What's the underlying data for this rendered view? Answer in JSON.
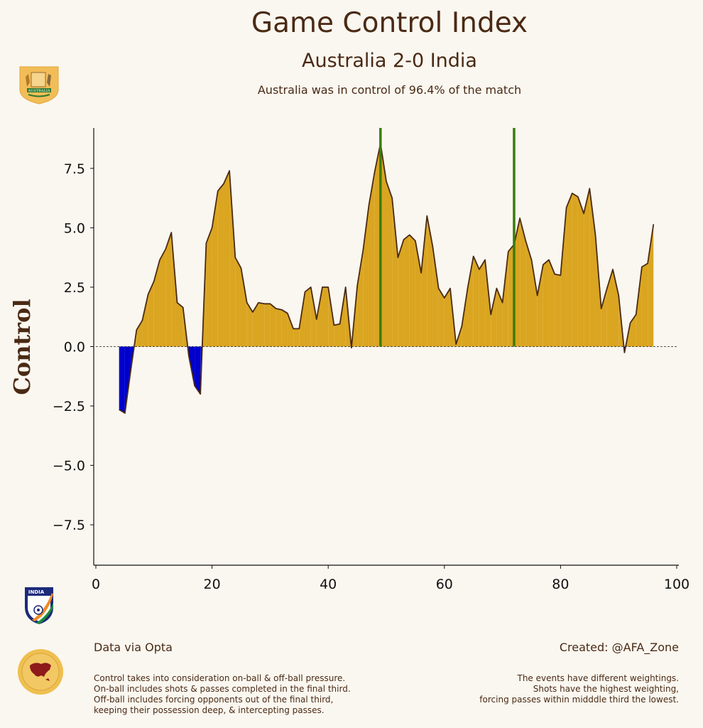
{
  "header": {
    "title": "Game Control Index",
    "match": "Australia 2-0 India",
    "summary": "Australia was in control of 96.4% of the match"
  },
  "logos": {
    "home_team_text": "AUSTRALIA",
    "away_team_text": "INDIA"
  },
  "footer": {
    "data_source": "Data via Opta",
    "created_by": "Created: @AFA_Zone",
    "note_left": [
      "Control takes into consideration on-ball & off-ball pressure.",
      "On-ball includes shots & passes completed in the final third.",
      "Off-ball includes forcing opponents out of the final third,",
      "keeping their possession deep, & intercepting passes."
    ],
    "note_right": [
      "The events have different weightings.",
      "Shots have the highest weighting,",
      "forcing passes within midddle third the lowest."
    ]
  },
  "colors": {
    "home_fill": "#daa520",
    "away_fill": "#0000cd",
    "line": "#4a2a14",
    "goal_line": "#3a7d0a",
    "background": "#faf7f0"
  },
  "chart_data": {
    "type": "area",
    "title": "Game Control Index",
    "ylabel": "Control",
    "xlabel": "",
    "xlim": [
      0,
      100
    ],
    "ylim": [
      -9.2,
      9.2
    ],
    "xticks": [
      0,
      20,
      40,
      60,
      80,
      100
    ],
    "yticks": [
      -7.5,
      -5.0,
      -2.5,
      0.0,
      2.5,
      5.0,
      7.5
    ],
    "ytick_labels": [
      "−7.5",
      "−5.0",
      "−2.5",
      "0.0",
      "2.5",
      "5.0",
      "7.5"
    ],
    "goal_minutes": [
      49,
      72
    ],
    "series": [
      {
        "name": "Control",
        "x": [
          4,
          5,
          6,
          7,
          8,
          9,
          10,
          11,
          12,
          13,
          14,
          15,
          16,
          17,
          18,
          19,
          20,
          21,
          22,
          23,
          24,
          25,
          26,
          27,
          28,
          29,
          30,
          31,
          32,
          33,
          34,
          35,
          36,
          37,
          38,
          39,
          40,
          41,
          42,
          43,
          44,
          45,
          46,
          47,
          48,
          49,
          50,
          51,
          52,
          53,
          54,
          55,
          56,
          57,
          58,
          59,
          60,
          61,
          62,
          63,
          64,
          65,
          66,
          67,
          68,
          69,
          70,
          71,
          72,
          73,
          74,
          75,
          76,
          77,
          78,
          79,
          80,
          81,
          82,
          83,
          84,
          85,
          86,
          87,
          88,
          89,
          90,
          91,
          92,
          93,
          94,
          95,
          96
        ],
        "values": [
          -2.65,
          -2.8,
          -1.0,
          0.7,
          1.1,
          2.2,
          2.75,
          3.65,
          4.1,
          4.8,
          1.85,
          1.65,
          -0.4,
          -1.65,
          -2.0,
          4.35,
          5.0,
          6.55,
          6.85,
          7.4,
          3.75,
          3.3,
          1.85,
          1.45,
          1.85,
          1.8,
          1.8,
          1.6,
          1.55,
          1.4,
          0.75,
          0.75,
          2.3,
          2.5,
          1.15,
          2.5,
          2.5,
          0.9,
          0.95,
          2.5,
          -0.05,
          2.55,
          4.05,
          5.95,
          7.35,
          8.55,
          6.95,
          6.25,
          3.75,
          4.5,
          4.7,
          4.45,
          3.1,
          5.5,
          4.2,
          2.45,
          2.05,
          2.45,
          0.1,
          0.85,
          2.45,
          3.8,
          3.25,
          3.65,
          1.35,
          2.45,
          1.85,
          4.0,
          4.3,
          5.4,
          4.45,
          3.65,
          2.15,
          3.45,
          3.65,
          3.05,
          3.0,
          5.85,
          6.45,
          6.3,
          5.6,
          6.65,
          4.7,
          1.6,
          2.45,
          3.25,
          2.15,
          -0.25,
          1.0,
          1.35,
          3.35,
          3.5,
          5.15
        ]
      }
    ]
  }
}
